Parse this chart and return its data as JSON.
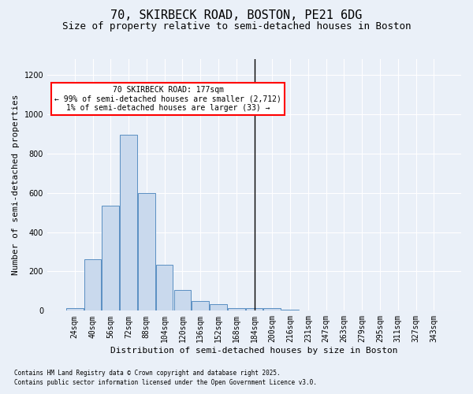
{
  "title": "70, SKIRBECK ROAD, BOSTON, PE21 6DG",
  "subtitle": "Size of property relative to semi-detached houses in Boston",
  "xlabel": "Distribution of semi-detached houses by size in Boston",
  "ylabel": "Number of semi-detached properties",
  "footnote1": "Contains HM Land Registry data © Crown copyright and database right 2025.",
  "footnote2": "Contains public sector information licensed under the Open Government Licence v3.0.",
  "annotation_title": "70 SKIRBECK ROAD: 177sqm",
  "annotation_line2": "← 99% of semi-detached houses are smaller (2,712)",
  "annotation_line3": "1% of semi-detached houses are larger (33) →",
  "bar_labels": [
    "24sqm",
    "40sqm",
    "56sqm",
    "72sqm",
    "88sqm",
    "104sqm",
    "120sqm",
    "136sqm",
    "152sqm",
    "168sqm",
    "184sqm",
    "200sqm",
    "216sqm",
    "231sqm",
    "247sqm",
    "263sqm",
    "279sqm",
    "295sqm",
    "311sqm",
    "327sqm",
    "343sqm"
  ],
  "bar_values": [
    12,
    260,
    535,
    895,
    600,
    235,
    105,
    50,
    33,
    15,
    15,
    15,
    5,
    0,
    0,
    0,
    0,
    0,
    0,
    0,
    0
  ],
  "bar_color": "#c9d9ed",
  "bar_edge_color": "#5a8fc2",
  "vline_x": 10,
  "ylim": [
    0,
    1280
  ],
  "yticks": [
    0,
    200,
    400,
    600,
    800,
    1000,
    1200
  ],
  "bg_color": "#eaf0f8",
  "plot_bg_color": "#eaf0f8",
  "grid_color": "#ffffff",
  "title_fontsize": 11,
  "subtitle_fontsize": 9,
  "xlabel_fontsize": 8,
  "ylabel_fontsize": 8,
  "tick_fontsize": 7,
  "annot_fontsize": 7,
  "footnote_fontsize": 5.5
}
